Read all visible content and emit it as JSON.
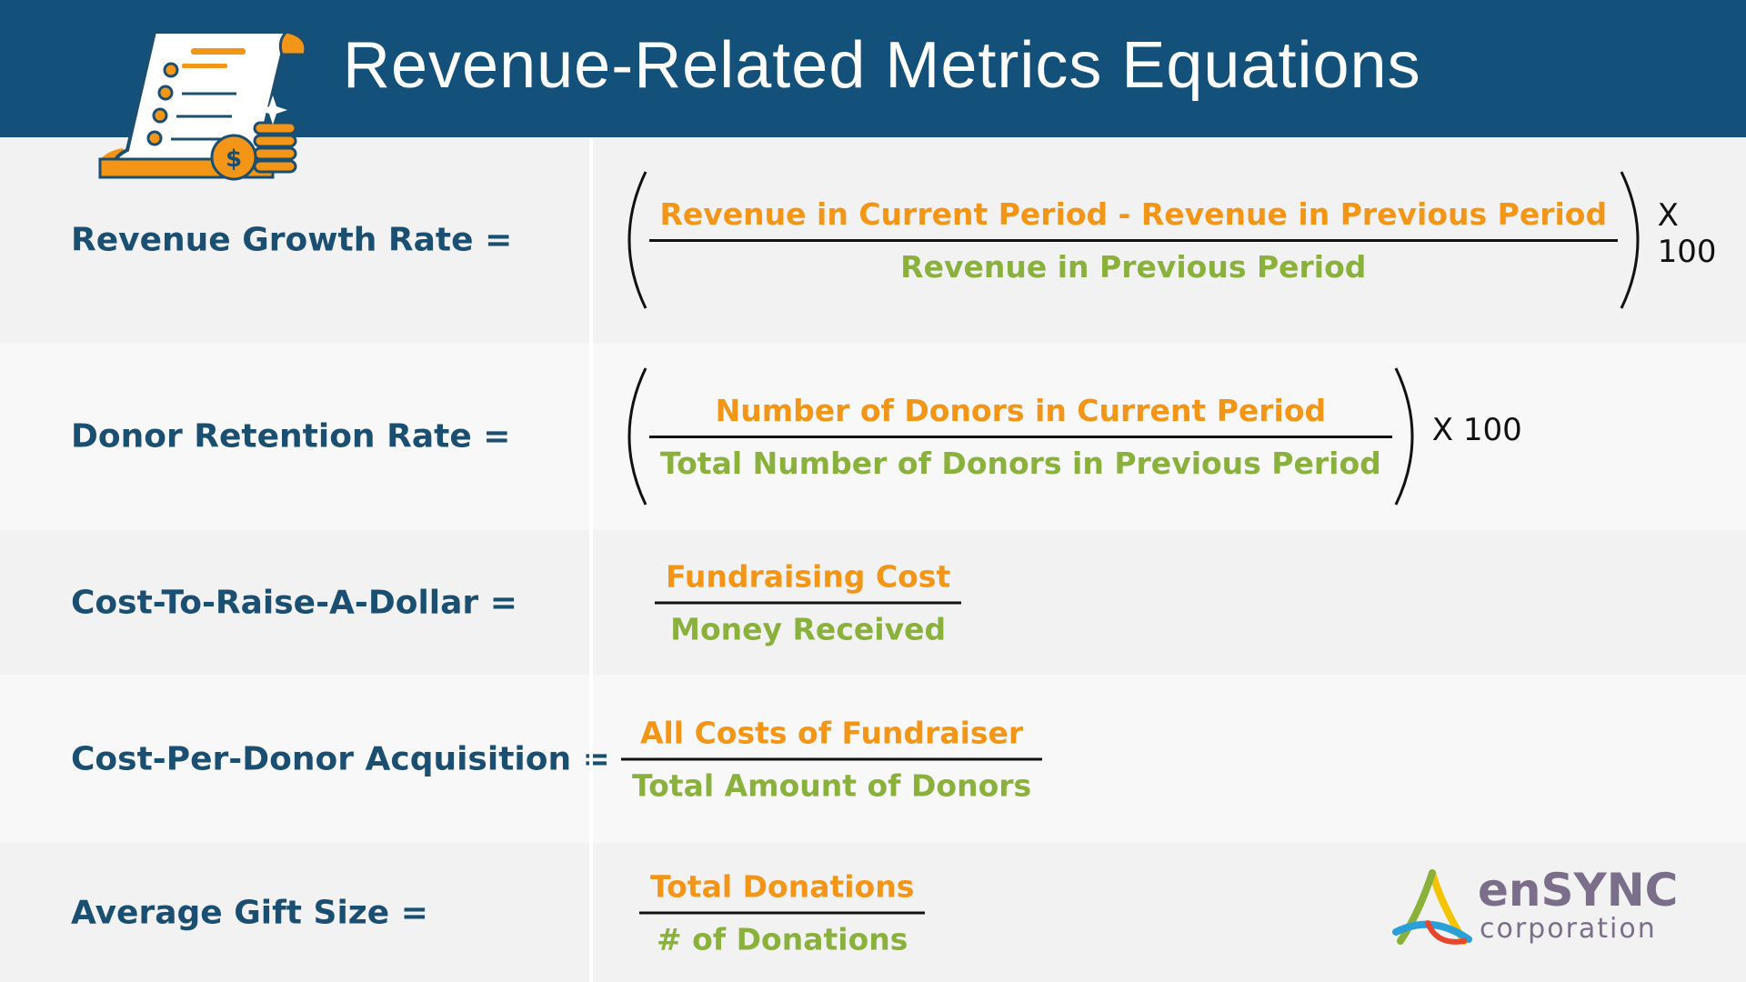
{
  "header": {
    "title": "Revenue-Related Metrics Equations"
  },
  "rows": [
    {
      "label": "Revenue Growth Rate =",
      "numerator": "Revenue in Current Period - Revenue in Previous Period",
      "denominator": "Revenue in Previous Period",
      "multiplier": "X 100"
    },
    {
      "label": "Donor Retention Rate =",
      "numerator": "Number of Donors in Current Period",
      "denominator": "Total Number of Donors in Previous Period",
      "multiplier": "X 100"
    },
    {
      "label": "Cost-To-Raise-A-Dollar =",
      "numerator": "Fundraising Cost",
      "denominator": "Money Received"
    },
    {
      "label": "Cost-Per-Donor Acquisition =",
      "numerator": "All Costs of Fundraiser",
      "denominator": "Total Amount of Donors"
    },
    {
      "label": "Average Gift Size =",
      "numerator": "Total Donations",
      "denominator": "# of Donations"
    }
  ],
  "logo": {
    "name": "enSYNC",
    "tagline": "corporation"
  }
}
